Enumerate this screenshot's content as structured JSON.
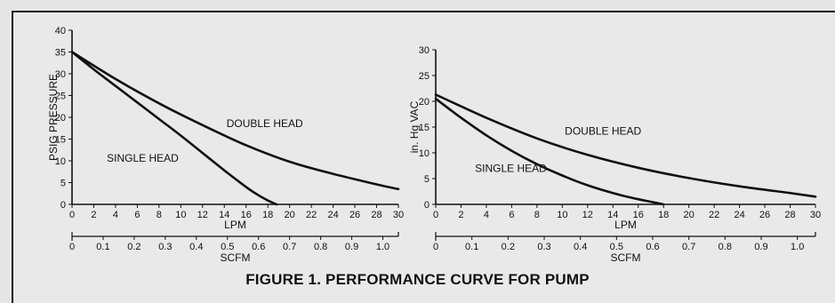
{
  "figure_caption": "FIGURE 1. PERFORMANCE CURVE FOR PUMP",
  "colors": {
    "background": "#e9e9e9",
    "ink": "#111111"
  },
  "chart_data": [
    {
      "type": "line",
      "title": "",
      "ylabel": "PSIG PRESSURE",
      "xlabel": "LPM",
      "secondary_xlabel": "SCFM",
      "xlim": [
        0,
        30
      ],
      "ylim": [
        0,
        40
      ],
      "xticks": [
        0,
        2,
        4,
        6,
        8,
        10,
        12,
        14,
        16,
        18,
        20,
        22,
        24,
        26,
        28,
        30
      ],
      "yticks": [
        0,
        5,
        10,
        15,
        20,
        25,
        30,
        35,
        40
      ],
      "secondary_xlim": [
        0,
        1.05
      ],
      "secondary_xticks": [
        "0",
        "0.1",
        "0.2",
        "0.3",
        "0.4",
        "0.5",
        "0.6",
        "0.7",
        "0.8",
        "0.9",
        "1.0"
      ],
      "grid": false,
      "series": [
        {
          "name": "SINGLE HEAD",
          "x": [
            0,
            2,
            4,
            6,
            8,
            10,
            12,
            14,
            16,
            17,
            18,
            18.8
          ],
          "y": [
            35,
            31,
            27.2,
            23.4,
            19.6,
            15.8,
            11.8,
            7.8,
            4,
            2.3,
            0.9,
            0
          ]
        },
        {
          "name": "DOUBLE HEAD",
          "x": [
            0,
            4,
            8,
            12,
            16,
            20,
            24,
            28,
            30
          ],
          "y": [
            35,
            28.8,
            23.2,
            18.2,
            13.6,
            9.8,
            7,
            4.6,
            3.5
          ]
        }
      ],
      "annotations": [
        {
          "text": "SINGLE HEAD",
          "x": 3.2,
          "y": 9.8
        },
        {
          "text": "DOUBLE HEAD",
          "x": 14.2,
          "y": 17.8
        }
      ]
    },
    {
      "type": "line",
      "title": "",
      "ylabel": "in. Hg VAC",
      "xlabel": "LPM",
      "secondary_xlabel": "SCFM",
      "xlim": [
        0,
        30
      ],
      "ylim": [
        0,
        30
      ],
      "xticks": [
        0,
        2,
        4,
        6,
        8,
        10,
        12,
        14,
        16,
        18,
        20,
        22,
        24,
        26,
        28,
        30
      ],
      "yticks": [
        0,
        5,
        10,
        15,
        20,
        25,
        30
      ],
      "secondary_xlim": [
        0,
        1.05
      ],
      "secondary_xticks": [
        "0",
        "0.1",
        "0.2",
        "0.3",
        "0.4",
        "0.5",
        "0.6",
        "0.7",
        "0.8",
        "0.9",
        "1.0"
      ],
      "grid": false,
      "series": [
        {
          "name": "SINGLE HEAD",
          "x": [
            0,
            2,
            4,
            6,
            8,
            10,
            12,
            14,
            16,
            17,
            18
          ],
          "y": [
            20.5,
            16.8,
            13.4,
            10.4,
            7.8,
            5.6,
            3.7,
            2.2,
            1,
            0.5,
            0
          ]
        },
        {
          "name": "DOUBLE HEAD",
          "x": [
            0,
            4,
            8,
            12,
            16,
            20,
            24,
            28,
            30
          ],
          "y": [
            21.3,
            16.8,
            12.8,
            9.6,
            7.1,
            5.1,
            3.5,
            2.2,
            1.5
          ]
        }
      ],
      "annotations": [
        {
          "text": "SINGLE HEAD",
          "x": 3.1,
          "y": 6.3
        },
        {
          "text": "DOUBLE HEAD",
          "x": 10.2,
          "y": 13.5
        }
      ]
    }
  ]
}
